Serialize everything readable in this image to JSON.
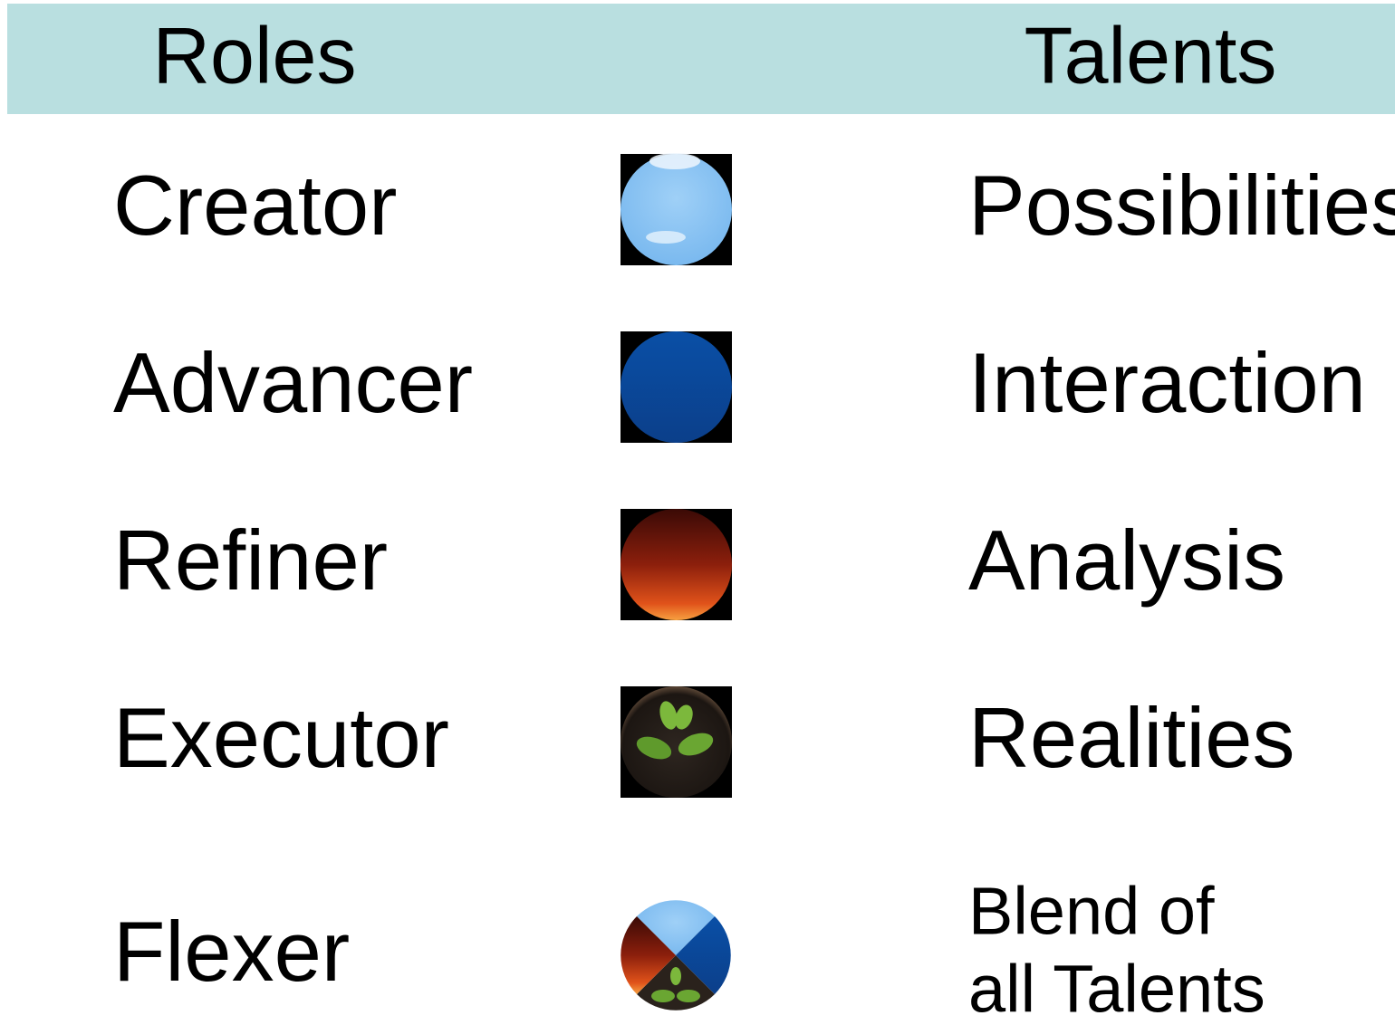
{
  "header": {
    "roles": "Roles",
    "talents": "Talents"
  },
  "rows": [
    {
      "role": "Creator",
      "talent": [
        "Possibilities"
      ]
    },
    {
      "role": "Advancer",
      "talent": [
        "Interaction"
      ]
    },
    {
      "role": "Refiner",
      "talent": [
        "Analysis"
      ]
    },
    {
      "role": "Executor",
      "talent": [
        "Realities"
      ]
    },
    {
      "role": "Flexer",
      "talent": [
        "Blend of",
        "all Talents"
      ]
    }
  ]
}
